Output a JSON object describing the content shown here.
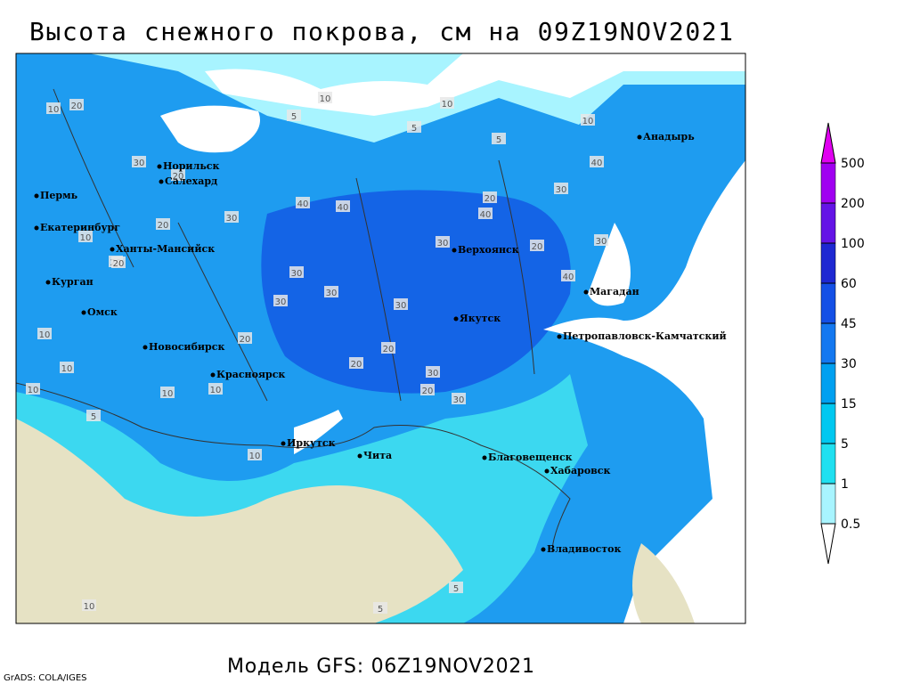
{
  "title": "Высота снежного покрова, см на 09Z19NOV2021",
  "footer": "Модель GFS: 06Z19NOV2021",
  "credit": "GrADS: COLA/IGES",
  "cities": [
    "Норильск",
    "Салехард",
    "Пермь",
    "Екатеринбург",
    "Ханты-Мансийск",
    "Курган",
    "Омск",
    "Новосибирск",
    "Красноярск",
    "Иркутск",
    "Чита",
    "Благовещенск",
    "Хабаровск",
    "Владивосток",
    "Якутск",
    "Верхоянск",
    "Магадан",
    "Петропавловск-Камчатский",
    "Анадырь"
  ],
  "legend": {
    "levels": [
      0.5,
      1,
      5,
      15,
      30,
      45,
      60,
      100,
      200,
      500
    ],
    "colors": [
      "#ffffff",
      "#a8f4ff",
      "#20e0f0",
      "#00c8f0",
      "#00a0f0",
      "#1478f0",
      "#1450e6",
      "#1e28d2",
      "#6414e6",
      "#a000f0",
      "#e000f0"
    ]
  },
  "contour_labels": [
    10,
    20,
    10,
    5,
    10,
    5,
    5,
    10,
    30,
    20,
    40,
    40,
    40,
    20,
    30,
    20,
    30,
    40,
    20,
    10,
    30,
    30,
    30,
    20,
    30,
    20,
    30,
    30,
    20,
    20,
    20,
    10,
    10,
    10,
    5,
    10,
    10,
    5,
    5,
    10,
    20,
    10,
    30,
    40,
    30
  ]
}
